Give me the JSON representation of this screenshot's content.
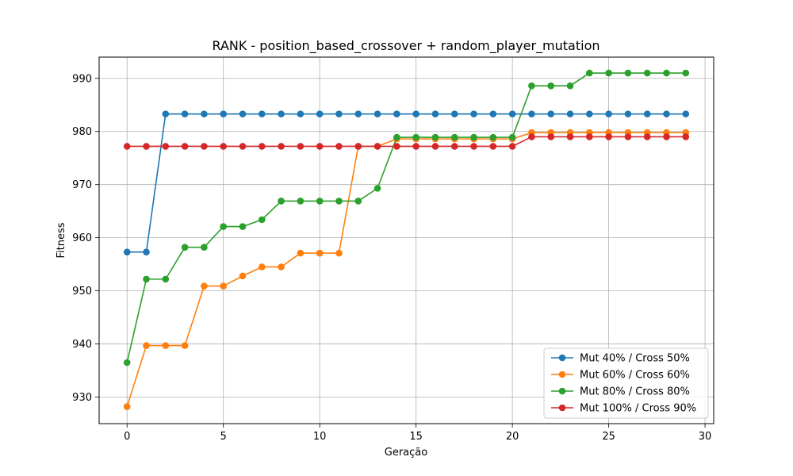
{
  "chart_data": {
    "type": "line",
    "title": "RANK - position_based_crossover + random_player_mutation",
    "xlabel": "Geração",
    "ylabel": "Fitness",
    "xlim": [
      -1.45,
      30.45
    ],
    "ylim": [
      925.0,
      994.0
    ],
    "xticks": [
      0,
      5,
      10,
      15,
      20,
      25,
      30
    ],
    "yticks": [
      930,
      940,
      950,
      960,
      970,
      980,
      990
    ],
    "grid": true,
    "legend_position": "lower right",
    "x": [
      0,
      1,
      2,
      3,
      4,
      5,
      6,
      7,
      8,
      9,
      10,
      11,
      12,
      13,
      14,
      15,
      16,
      17,
      18,
      19,
      20,
      21,
      22,
      23,
      24,
      25,
      26,
      27,
      28,
      29
    ],
    "series": [
      {
        "name": "Mut 40% / Cross 50%",
        "color": "#1f77b4",
        "values": [
          957.3,
          957.3,
          983.3,
          983.3,
          983.3,
          983.3,
          983.3,
          983.3,
          983.3,
          983.3,
          983.3,
          983.3,
          983.3,
          983.3,
          983.3,
          983.3,
          983.3,
          983.3,
          983.3,
          983.3,
          983.3,
          983.3,
          983.3,
          983.3,
          983.3,
          983.3,
          983.3,
          983.3,
          983.3,
          983.3
        ]
      },
      {
        "name": "Mut 60% / Cross 60%",
        "color": "#ff7f0e",
        "values": [
          928.2,
          939.7,
          939.7,
          939.7,
          950.9,
          950.9,
          952.8,
          954.5,
          954.5,
          957.1,
          957.1,
          957.1,
          977.2,
          977.2,
          978.6,
          978.6,
          978.6,
          978.6,
          978.6,
          978.6,
          978.6,
          979.8,
          979.8,
          979.8,
          979.8,
          979.8,
          979.8,
          979.8,
          979.8,
          979.8
        ]
      },
      {
        "name": "Mut 80% / Cross 80%",
        "color": "#2ca02c",
        "values": [
          936.5,
          952.2,
          952.2,
          958.2,
          958.2,
          962.1,
          962.1,
          963.4,
          966.9,
          966.9,
          966.9,
          966.9,
          966.9,
          969.3,
          978.9,
          978.9,
          978.9,
          978.9,
          978.9,
          978.9,
          978.9,
          988.6,
          988.6,
          988.6,
          991.0,
          991.0,
          991.0,
          991.0,
          991.0,
          991.0
        ]
      },
      {
        "name": "Mut 100% / Cross 90%",
        "color": "#d62728",
        "values": [
          977.2,
          977.2,
          977.2,
          977.2,
          977.2,
          977.2,
          977.2,
          977.2,
          977.2,
          977.2,
          977.2,
          977.2,
          977.2,
          977.2,
          977.2,
          977.2,
          977.2,
          977.2,
          977.2,
          977.2,
          977.2,
          979.0,
          979.0,
          979.0,
          979.0,
          979.0,
          979.0,
          979.0,
          979.0,
          979.0
        ]
      }
    ]
  }
}
